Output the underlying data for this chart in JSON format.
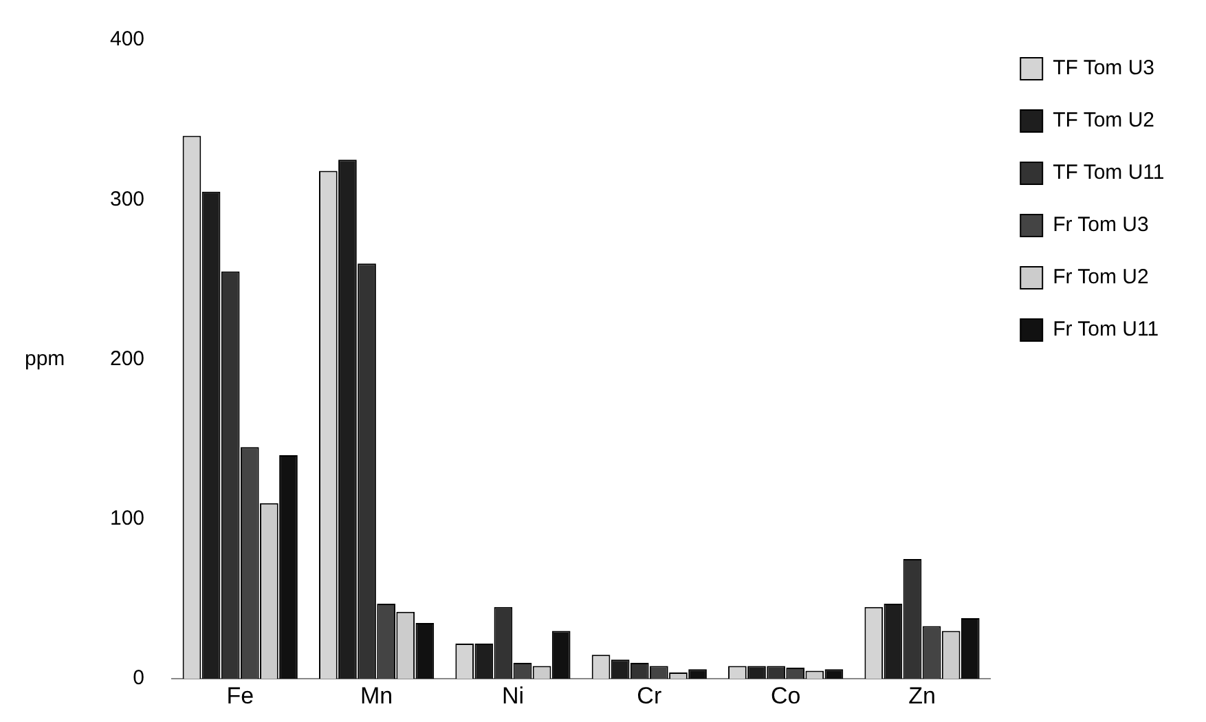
{
  "chart_data": {
    "type": "bar",
    "ylabel": "ppm",
    "categories": [
      "Fe",
      "Mn",
      "Ni",
      "Cr",
      "Co",
      "Zn"
    ],
    "series": [
      {
        "name": "TF Tom U3",
        "color": "#d4d4d4",
        "values": [
          340,
          318,
          22,
          15,
          8,
          45
        ]
      },
      {
        "name": "TF Tom U2",
        "color": "#1e1e1e",
        "values": [
          305,
          325,
          22,
          12,
          8,
          47
        ]
      },
      {
        "name": "TF Tom U11",
        "color": "#333333",
        "values": [
          255,
          260,
          45,
          10,
          8,
          75
        ]
      },
      {
        "name": "Fr Tom U3",
        "color": "#444444",
        "values": [
          145,
          47,
          10,
          8,
          7,
          33
        ]
      },
      {
        "name": "Fr Tom U2",
        "color": "#cccccc",
        "values": [
          110,
          42,
          8,
          4,
          5,
          30
        ]
      },
      {
        "name": "Fr Tom U11",
        "color": "#111111",
        "values": [
          140,
          35,
          30,
          6,
          6,
          38
        ]
      }
    ],
    "ylim": [
      0,
      400
    ],
    "yticks": [
      0,
      100,
      200,
      300,
      400
    ],
    "grid": false,
    "legend": "right"
  }
}
